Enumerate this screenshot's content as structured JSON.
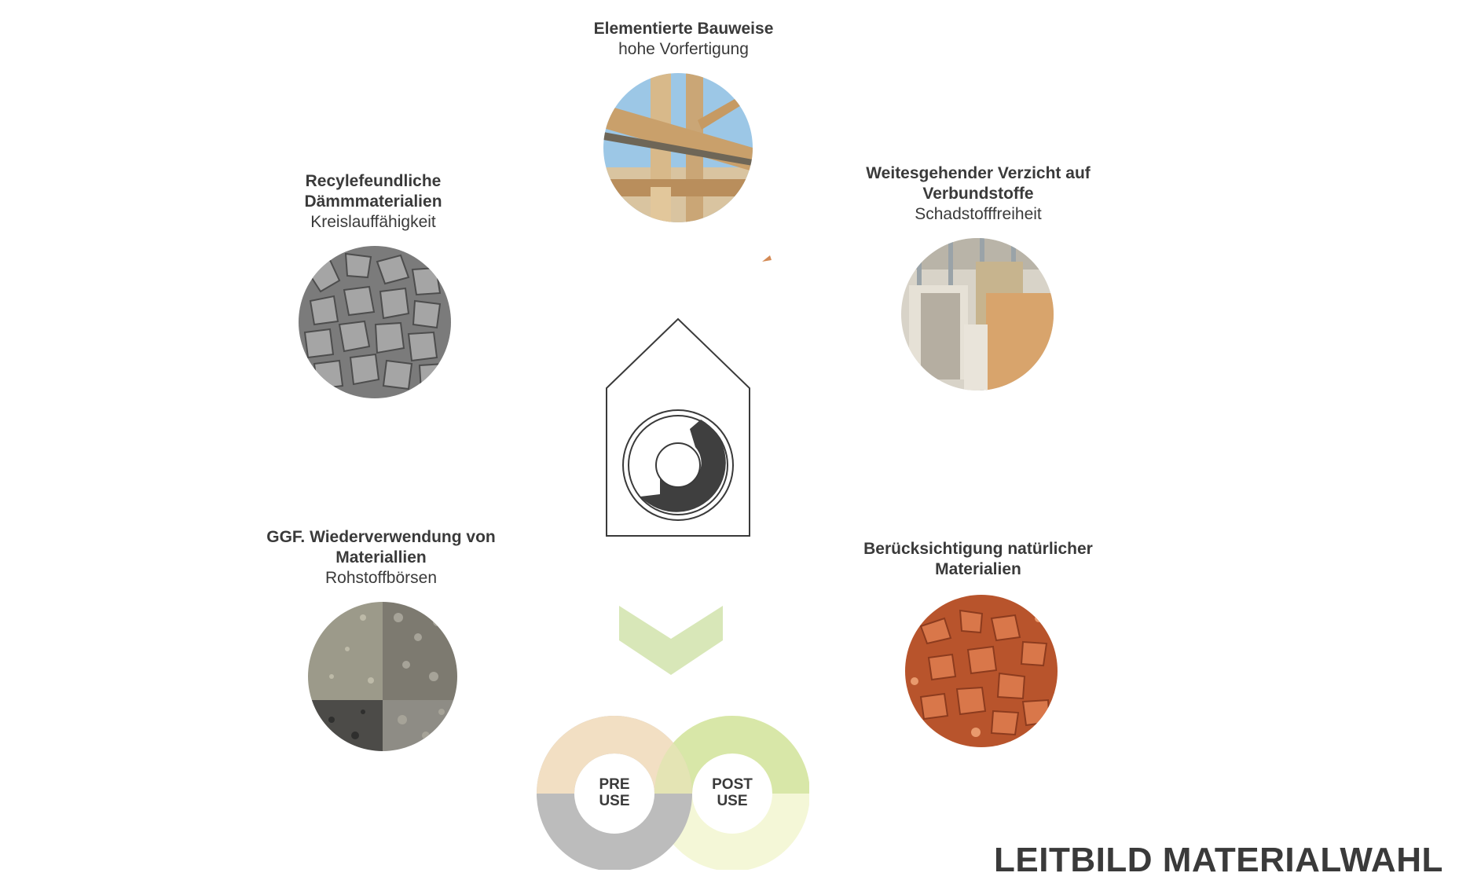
{
  "nodes": {
    "top": {
      "title": "Elementierte Bauweise",
      "subtitle": "hohe Vorfertigung",
      "image_icon": "timber-frame-photo"
    },
    "upper_left": {
      "title": "Recylefeundliche Dämmmaterialien",
      "subtitle": "Kreislauffähigkeit",
      "image_icon": "gravel-photo"
    },
    "upper_right": {
      "title": "Weitesgehender Verzicht auf Verbundstoffe",
      "subtitle": "Schadstofffreiheit",
      "image_icon": "drywall-interior-photo"
    },
    "lower_left": {
      "title": "GGF. Wiederverwendung von Materiallien",
      "subtitle": "Rohstoffbörsen",
      "image_icon": "concrete-aggregate-photo"
    },
    "lower_right": {
      "title": "Berücksichtigung natürlicher Materialien",
      "subtitle": "",
      "image_icon": "clay-soil-photo"
    }
  },
  "center": {
    "icon": "house-cycle-icon"
  },
  "arrow": {
    "icon": "chevron-down-icon",
    "color": "#d8e7b8"
  },
  "cycle": {
    "pre_label": "PRE USE",
    "post_label": "POST USE",
    "colors": {
      "pre_top": "#f2dfc3",
      "pre_bottom": "#bcbcbc",
      "post_top": "#d8e7a8",
      "post_bottom": "#f4f7d7"
    }
  },
  "page_title": "LEITBILD MATERIALWAHL",
  "colors": {
    "text": "#3a3a3a",
    "dark_fill": "#3f3f3f"
  }
}
